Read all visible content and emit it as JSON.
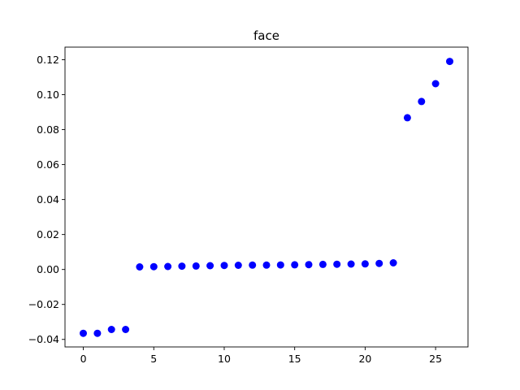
{
  "chart_data": {
    "type": "scatter",
    "title": "face",
    "xlabel": "",
    "ylabel": "",
    "xlim": [
      -1.3,
      27.3
    ],
    "ylim": [
      -0.0443,
      0.1272
    ],
    "grid": false,
    "legend": "none",
    "marker_color": "#0000ff",
    "xticks": [
      0,
      5,
      10,
      15,
      20,
      25
    ],
    "xtick_labels": [
      "0",
      "5",
      "10",
      "15",
      "20",
      "25"
    ],
    "yticks": [
      -0.04,
      -0.02,
      0.0,
      0.02,
      0.04,
      0.06,
      0.08,
      0.1,
      0.12
    ],
    "ytick_labels": [
      "−0.04",
      "−0.02",
      "0.00",
      "0.02",
      "0.04",
      "0.06",
      "0.08",
      "0.10",
      "0.12"
    ],
    "x": [
      0,
      1,
      2,
      3,
      4,
      5,
      6,
      7,
      8,
      9,
      10,
      11,
      12,
      13,
      14,
      15,
      16,
      17,
      18,
      19,
      20,
      21,
      22,
      23,
      24,
      25,
      26
    ],
    "y": [
      -0.0365,
      -0.0365,
      -0.0343,
      -0.0343,
      0.0015,
      0.0016,
      0.0017,
      0.0019,
      0.002,
      0.0022,
      0.0023,
      0.0024,
      0.0025,
      0.0025,
      0.0026,
      0.0027,
      0.0028,
      0.0029,
      0.003,
      0.0031,
      0.0032,
      0.0035,
      0.0038,
      0.0868,
      0.0961,
      0.1063,
      0.119
    ]
  }
}
